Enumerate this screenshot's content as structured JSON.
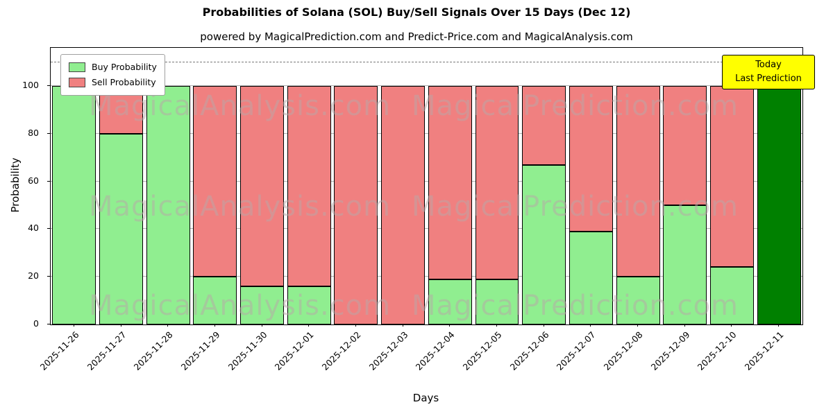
{
  "header": {
    "title": "Probabilities of Solana (SOL) Buy/Sell Signals Over 15 Days (Dec 12)",
    "subtitle": "powered by MagicalPrediction.com and Predict-Price.com and MagicalAnalysis.com"
  },
  "legend": {
    "items": [
      {
        "label": "Buy Probability",
        "color": "#90ee90"
      },
      {
        "label": "Sell Probability",
        "color": "#f08080"
      }
    ]
  },
  "annotation": {
    "line1": "Today",
    "line2": "Last Prediction",
    "bg_color": "#ffff00"
  },
  "watermark": {
    "left_text": "MagicalAnalysis.com",
    "right_text": "MagicalPrediction.com"
  },
  "chart_data": {
    "type": "bar",
    "stacked": true,
    "title": "Probabilities of Solana (SOL) Buy/Sell Signals Over 15 Days (Dec 12)",
    "xlabel": "Days",
    "ylabel": "Probability",
    "ylim": [
      0,
      116
    ],
    "yticks": [
      0,
      20,
      40,
      60,
      80,
      100
    ],
    "grid": "horizontal",
    "dashed_line_y": 110,
    "legend_position": "upper left",
    "bar_edge_color": "#000000",
    "categories": [
      "2025-11-26",
      "2025-11-27",
      "2025-11-28",
      "2025-11-29",
      "2025-11-30",
      "2025-12-01",
      "2025-12-02",
      "2025-12-03",
      "2025-12-04",
      "2025-12-05",
      "2025-12-06",
      "2025-12-07",
      "2025-12-08",
      "2025-12-09",
      "2025-12-10",
      "2025-12-11"
    ],
    "series": [
      {
        "name": "Buy Probability",
        "color": "#90ee90",
        "values": [
          100,
          80,
          100,
          20,
          16,
          16,
          0,
          0,
          19,
          19,
          67,
          39,
          20,
          50,
          24,
          100
        ]
      },
      {
        "name": "Sell Probability",
        "color": "#f08080",
        "values": [
          0,
          20,
          0,
          80,
          84,
          84,
          100,
          100,
          81,
          81,
          33,
          61,
          80,
          50,
          76,
          0
        ]
      }
    ],
    "today_bar": {
      "index": 15,
      "color": "#008000"
    }
  }
}
